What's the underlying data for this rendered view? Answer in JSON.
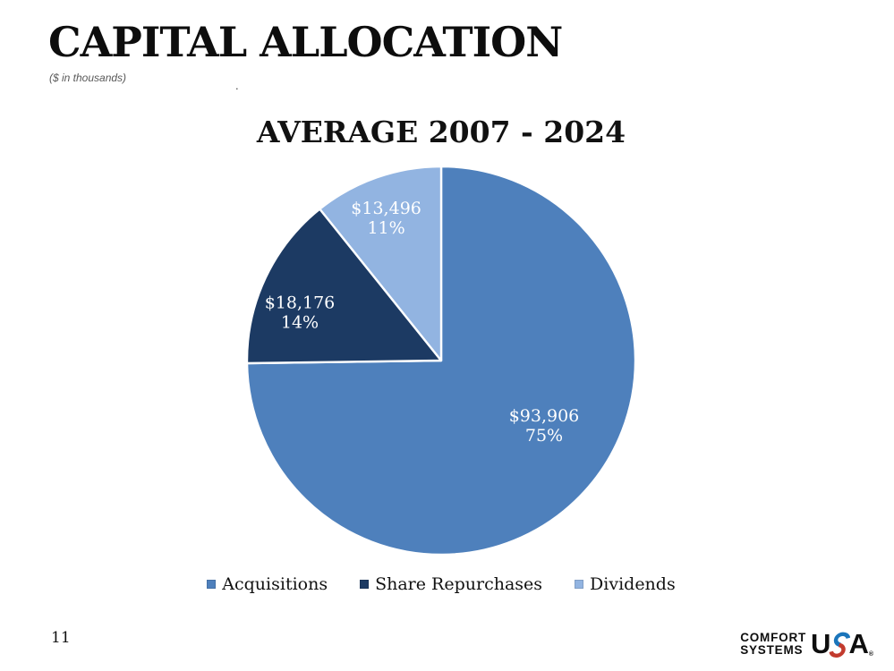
{
  "header": {
    "title": "CAPITAL ALLOCATION",
    "subtitle": "($ in thousands)",
    "stray_mark": "."
  },
  "page_number": "11",
  "chart_data": {
    "type": "pie",
    "title": "AVERAGE 2007 - 2024",
    "legend_position": "bottom",
    "start_angle_deg": 0,
    "direction": "clockwise",
    "slices": [
      {
        "label": "Acquisitions",
        "value": 93906,
        "value_label": "$93,906",
        "pct_label": "75%",
        "color": "#4E80BC"
      },
      {
        "label": "Share Repurchases",
        "value": 18176,
        "value_label": "$18,176",
        "pct_label": "14%",
        "color": "#1C3A63"
      },
      {
        "label": "Dividends",
        "value": 13496,
        "value_label": "$13,496",
        "pct_label": "11%",
        "color": "#92B4E1"
      }
    ],
    "slice_border_color": "#FFFFFF",
    "label_text_color": "#FFFFFF"
  },
  "logo": {
    "line1": "COMFORT",
    "line2": "SYSTEMS",
    "usa_u": "U",
    "usa_a": "A",
    "registered": "®",
    "swoosh_blue": "#1B75BB",
    "swoosh_red": "#C23B2E"
  }
}
